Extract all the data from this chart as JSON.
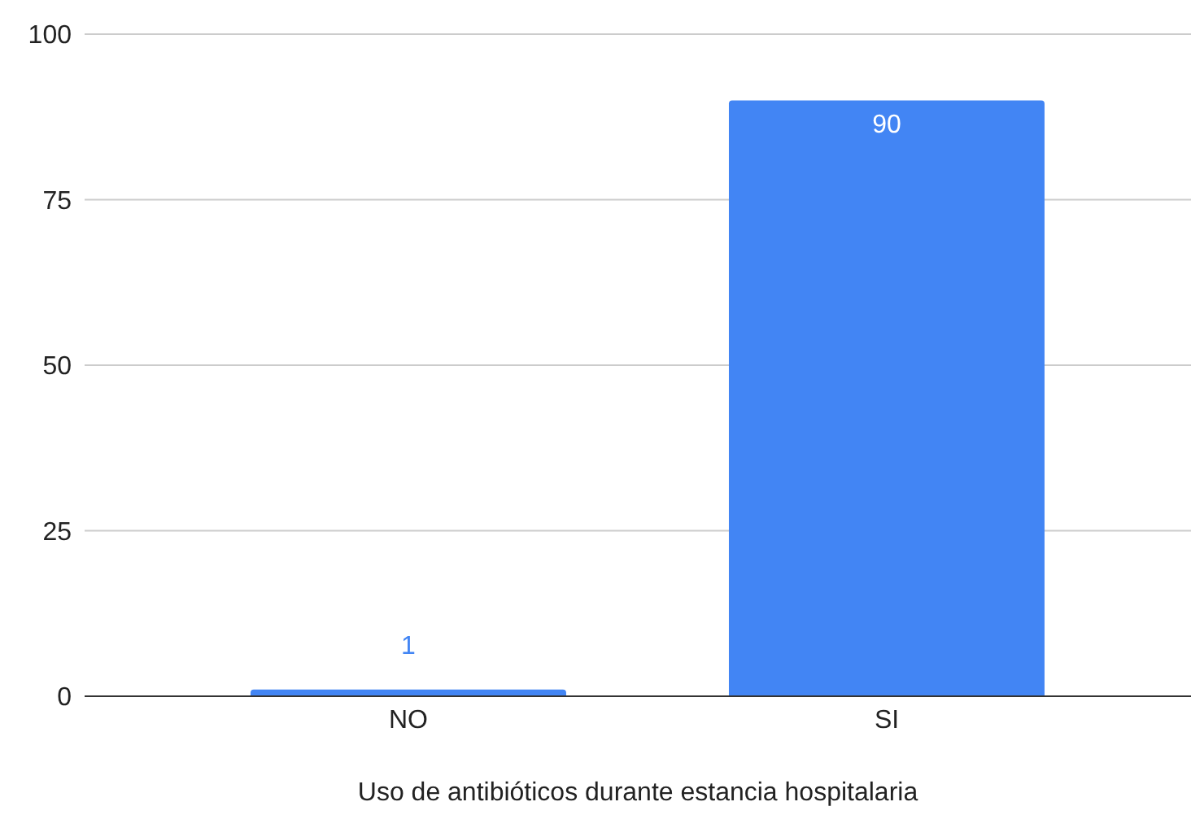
{
  "chart_data": {
    "type": "bar",
    "xlabel": "Uso de antibióticos durante estancia hospitalaria",
    "categories": [
      "NO",
      "SI"
    ],
    "values": [
      1,
      90
    ],
    "color": "#4285f4",
    "ylim": [
      0,
      100
    ],
    "yticks": [
      0,
      25,
      50,
      75,
      100
    ],
    "grid": "y",
    "data_labels": true
  }
}
